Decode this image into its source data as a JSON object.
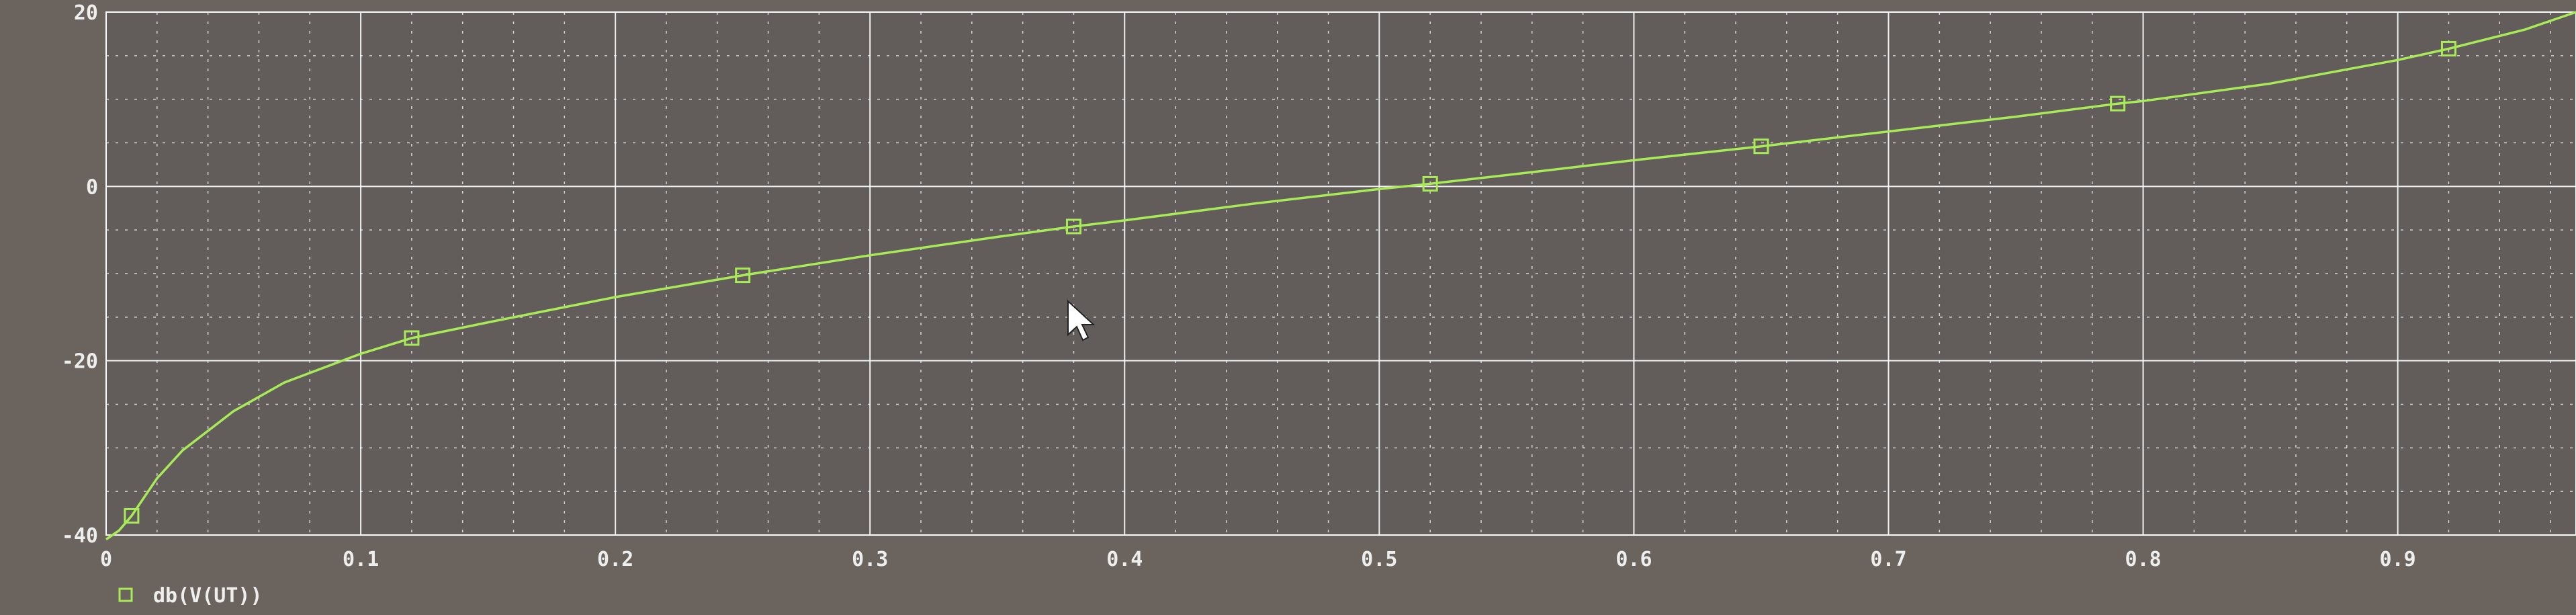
{
  "colors": {
    "background": "#6b645e",
    "plot_background": "#625d5a",
    "grid": "#ffffff",
    "trace": "#a8ea58",
    "text": "#eeeeee"
  },
  "chart_data": {
    "type": "line",
    "title": "",
    "xlabel": "",
    "ylabel": "",
    "xlim": [
      0,
      0.97
    ],
    "ylim": [
      -40,
      20
    ],
    "x_ticks": [
      {
        "value": 0,
        "label": "0"
      },
      {
        "value": 0.1,
        "label": "0.1"
      },
      {
        "value": 0.2,
        "label": "0.2"
      },
      {
        "value": 0.3,
        "label": "0.3"
      },
      {
        "value": 0.4,
        "label": "0.4"
      },
      {
        "value": 0.5,
        "label": "0.5"
      },
      {
        "value": 0.6,
        "label": "0.6"
      },
      {
        "value": 0.7,
        "label": "0.7"
      },
      {
        "value": 0.8,
        "label": "0.8"
      },
      {
        "value": 0.9,
        "label": "0.9"
      }
    ],
    "y_ticks": [
      {
        "value": 20,
        "label": "20"
      },
      {
        "value": 0,
        "label": "0"
      },
      {
        "value": -20,
        "label": "-20"
      },
      {
        "value": -40,
        "label": "-40"
      }
    ],
    "grid": true,
    "minor_grid": true,
    "legend": "bottom-left",
    "series": [
      {
        "name": "db(V(UT))",
        "marker": "square",
        "x": [
          0.0,
          0.005,
          0.01,
          0.02,
          0.03,
          0.05,
          0.07,
          0.1,
          0.12,
          0.15,
          0.2,
          0.25,
          0.3,
          0.35,
          0.38,
          0.4,
          0.45,
          0.5,
          0.52,
          0.55,
          0.6,
          0.65,
          0.7,
          0.75,
          0.79,
          0.8,
          0.85,
          0.9,
          0.92,
          0.95,
          0.97
        ],
        "y": [
          -40.5,
          -39.5,
          -37.8,
          -33.5,
          -30.3,
          -25.8,
          -22.5,
          -19.2,
          -17.4,
          -15.6,
          -12.7,
          -10.2,
          -7.9,
          -5.8,
          -4.6,
          -3.9,
          -2.0,
          -0.3,
          0.3,
          1.3,
          3.0,
          4.6,
          6.3,
          8.0,
          9.5,
          9.8,
          11.8,
          14.5,
          15.8,
          18.0,
          20.0
        ],
        "markers_x": [
          0.01,
          0.12,
          0.25,
          0.38,
          0.52,
          0.65,
          0.79,
          0.92
        ],
        "markers_y": [
          -37.8,
          -17.4,
          -10.2,
          -4.6,
          0.3,
          4.6,
          9.5,
          15.8
        ]
      }
    ]
  }
}
